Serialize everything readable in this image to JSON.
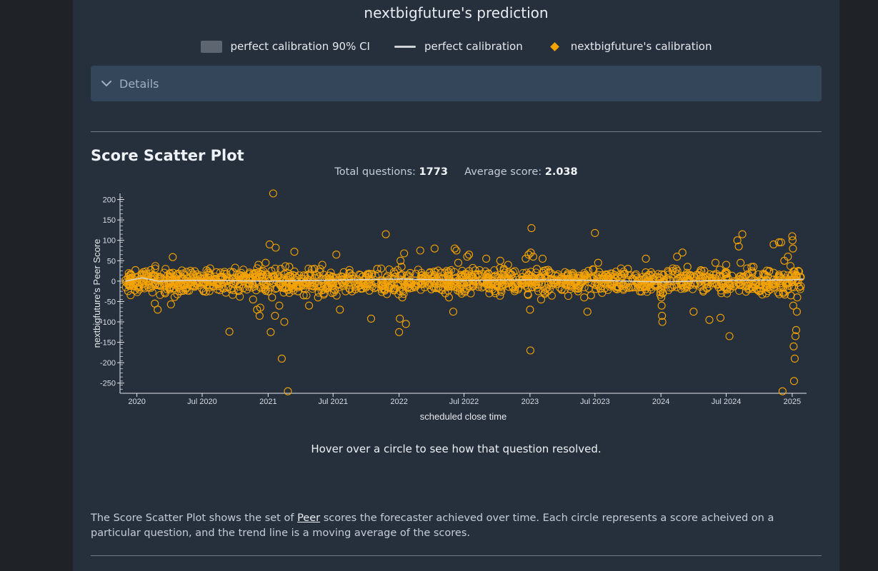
{
  "header": {
    "title": "nextbigfuture's prediction"
  },
  "legend": {
    "ci": "perfect calibration 90% CI",
    "line": "perfect calibration",
    "user": "nextbigfuture's calibration"
  },
  "details": {
    "label": "Details"
  },
  "section": {
    "title": "Score Scatter Plot",
    "total_label": "Total questions:",
    "total_value": "1773",
    "avg_label": "Average score:",
    "avg_value": "2.038"
  },
  "chart_data": {
    "type": "scatter",
    "ylabel": "nextbigfuture's Peer Score",
    "xlabel": "scheduled close time",
    "ylim": [
      -275,
      215
    ],
    "xlim": [
      "2019-11-15",
      "2025-02-10"
    ],
    "yticks": [
      "200",
      "150",
      "100",
      "50",
      "0",
      "-50",
      "-100",
      "-150",
      "-200",
      "-250"
    ],
    "xticks": [
      {
        "date": "2020-01-01",
        "label": "2020"
      },
      {
        "date": "2020-07-01",
        "label": "Jul 2020"
      },
      {
        "date": "2021-01-01",
        "label": "2021"
      },
      {
        "date": "2021-07-01",
        "label": "Jul 2021"
      },
      {
        "date": "2022-01-01",
        "label": "2022"
      },
      {
        "date": "2022-07-01",
        "label": "Jul 2022"
      },
      {
        "date": "2023-01-01",
        "label": "2023"
      },
      {
        "date": "2023-07-01",
        "label": "Jul 2023"
      },
      {
        "date": "2024-01-01",
        "label": "2024"
      },
      {
        "date": "2024-07-01",
        "label": "Jul 2024"
      },
      {
        "date": "2025-01-01",
        "label": "2025"
      }
    ],
    "marker_color": "#f5a300",
    "trend_color": "#d8dde3",
    "points": [
      [
        "2019-12-01",
        3
      ],
      [
        "2019-12-10",
        -1
      ],
      [
        "2019-12-20",
        8
      ],
      [
        "2019-12-28",
        27
      ],
      [
        "2020-01-10",
        5
      ],
      [
        "2020-02-01",
        -1
      ],
      [
        "2020-02-15",
        15
      ],
      [
        "2020-02-20",
        -55
      ],
      [
        "2020-02-28",
        -70
      ],
      [
        "2020-03-05",
        10
      ],
      [
        "2020-03-15",
        -5
      ],
      [
        "2020-03-20",
        -30
      ],
      [
        "2020-03-25",
        -20
      ],
      [
        "2020-04-01",
        18
      ],
      [
        "2020-04-05",
        -57
      ],
      [
        "2020-04-10",
        59
      ],
      [
        "2020-04-15",
        -39
      ],
      [
        "2020-04-20",
        -5
      ],
      [
        "2020-04-28",
        -25
      ],
      [
        "2020-05-05",
        5
      ],
      [
        "2020-05-10",
        -10
      ],
      [
        "2020-05-20",
        0
      ],
      [
        "2020-06-05",
        14
      ],
      [
        "2020-06-20",
        2
      ],
      [
        "2020-07-20",
        20
      ],
      [
        "2020-08-01",
        -2
      ],
      [
        "2020-08-20",
        10
      ],
      [
        "2020-09-01",
        18
      ],
      [
        "2020-09-15",
        -124
      ],
      [
        "2020-09-25",
        22
      ],
      [
        "2020-10-10",
        15
      ],
      [
        "2020-10-25",
        0
      ],
      [
        "2020-11-10",
        5
      ],
      [
        "2020-11-20",
        -45
      ],
      [
        "2020-11-25",
        20
      ],
      [
        "2020-12-01",
        -70
      ],
      [
        "2020-12-05",
        40
      ],
      [
        "2020-12-08",
        -85
      ],
      [
        "2020-12-10",
        -65
      ],
      [
        "2020-12-15",
        10
      ],
      [
        "2020-12-18",
        25
      ],
      [
        "2020-12-20",
        -10
      ],
      [
        "2020-12-25",
        45
      ],
      [
        "2021-01-01",
        -25
      ],
      [
        "2021-01-05",
        90
      ],
      [
        "2021-01-08",
        -125
      ],
      [
        "2021-01-10",
        25
      ],
      [
        "2021-01-12",
        -40
      ],
      [
        "2021-01-14",
        -5
      ],
      [
        "2021-01-15",
        215
      ],
      [
        "2021-01-18",
        10
      ],
      [
        "2021-01-20",
        -85
      ],
      [
        "2021-01-22",
        82
      ],
      [
        "2021-02-01",
        -60
      ],
      [
        "2021-02-05",
        30
      ],
      [
        "2021-02-08",
        -190
      ],
      [
        "2021-02-15",
        -100
      ],
      [
        "2021-02-20",
        -15
      ],
      [
        "2021-02-25",
        -270
      ],
      [
        "2021-03-01",
        35
      ],
      [
        "2021-03-10",
        15
      ],
      [
        "2021-03-15",
        72
      ],
      [
        "2021-03-25",
        -25
      ],
      [
        "2021-04-10",
        -35
      ],
      [
        "2021-04-20",
        5
      ],
      [
        "2021-04-25",
        -60
      ],
      [
        "2021-05-10",
        30
      ],
      [
        "2021-05-20",
        -40
      ],
      [
        "2021-06-01",
        40
      ],
      [
        "2021-06-15",
        -15
      ],
      [
        "2021-06-25",
        -5
      ],
      [
        "2021-07-01",
        10
      ],
      [
        "2021-07-10",
        65
      ],
      [
        "2021-07-20",
        -70
      ],
      [
        "2021-08-01",
        5
      ],
      [
        "2021-08-15",
        20
      ],
      [
        "2021-09-01",
        -20
      ],
      [
        "2021-09-15",
        15
      ],
      [
        "2021-10-01",
        8
      ],
      [
        "2021-10-15",
        -92
      ],
      [
        "2021-11-01",
        30
      ],
      [
        "2021-11-15",
        -10
      ],
      [
        "2021-11-25",
        115
      ],
      [
        "2021-12-10",
        -5
      ],
      [
        "2021-12-20",
        10
      ],
      [
        "2022-01-01",
        -125
      ],
      [
        "2022-01-03",
        -92
      ],
      [
        "2022-01-05",
        50
      ],
      [
        "2022-01-08",
        35
      ],
      [
        "2022-01-10",
        -40
      ],
      [
        "2022-01-12",
        0
      ],
      [
        "2022-01-15",
        68
      ],
      [
        "2022-01-20",
        -105
      ],
      [
        "2022-02-01",
        20
      ],
      [
        "2022-02-15",
        -15
      ],
      [
        "2022-03-01",
        75
      ],
      [
        "2022-03-15",
        10
      ],
      [
        "2022-04-01",
        -20
      ],
      [
        "2022-04-10",
        80
      ],
      [
        "2022-05-01",
        5
      ],
      [
        "2022-05-10",
        -30
      ],
      [
        "2022-05-20",
        -40
      ],
      [
        "2022-06-01",
        -75
      ],
      [
        "2022-06-05",
        80
      ],
      [
        "2022-06-10",
        75
      ],
      [
        "2022-06-15",
        45
      ],
      [
        "2022-07-01",
        10
      ],
      [
        "2022-07-10",
        60
      ],
      [
        "2022-07-15",
        65
      ],
      [
        "2022-08-01",
        0
      ],
      [
        "2022-09-01",
        55
      ],
      [
        "2022-10-01",
        -10
      ],
      [
        "2022-10-10",
        50
      ],
      [
        "2022-10-20",
        30
      ],
      [
        "2022-11-01",
        40
      ],
      [
        "2022-11-20",
        -20
      ],
      [
        "2022-12-10",
        10
      ],
      [
        "2022-12-20",
        55
      ],
      [
        "2022-12-28",
        65
      ],
      [
        "2023-01-01",
        -70
      ],
      [
        "2023-01-02",
        -170
      ],
      [
        "2023-01-03",
        70
      ],
      [
        "2023-01-05",
        130
      ],
      [
        "2023-01-10",
        60
      ],
      [
        "2023-01-20",
        30
      ],
      [
        "2023-02-01",
        -45
      ],
      [
        "2023-02-05",
        55
      ],
      [
        "2023-03-01",
        -5
      ],
      [
        "2023-04-01",
        10
      ],
      [
        "2023-05-01",
        20
      ],
      [
        "2023-05-15",
        -25
      ],
      [
        "2023-06-01",
        -40
      ],
      [
        "2023-06-10",
        -75
      ],
      [
        "2023-06-20",
        -35
      ],
      [
        "2023-07-01",
        118
      ],
      [
        "2023-07-10",
        45
      ],
      [
        "2023-08-01",
        15
      ],
      [
        "2023-09-01",
        -20
      ],
      [
        "2023-10-01",
        30
      ],
      [
        "2023-11-01",
        5
      ],
      [
        "2023-11-20",
        55
      ],
      [
        "2023-12-01",
        15
      ],
      [
        "2024-01-01",
        -20
      ],
      [
        "2024-01-02",
        -40
      ],
      [
        "2024-01-03",
        -60
      ],
      [
        "2024-01-04",
        -85
      ],
      [
        "2024-01-05",
        -100
      ],
      [
        "2024-01-06",
        -30
      ],
      [
        "2024-01-08",
        15
      ],
      [
        "2024-02-01",
        -15
      ],
      [
        "2024-02-15",
        60
      ],
      [
        "2024-03-01",
        70
      ],
      [
        "2024-03-15",
        35
      ],
      [
        "2024-04-01",
        -75
      ],
      [
        "2024-04-15",
        15
      ],
      [
        "2024-05-01",
        25
      ],
      [
        "2024-05-15",
        -95
      ],
      [
        "2024-06-01",
        45
      ],
      [
        "2024-06-15",
        -90
      ],
      [
        "2024-07-01",
        40
      ],
      [
        "2024-07-10",
        -135
      ],
      [
        "2024-07-20",
        -5
      ],
      [
        "2024-08-01",
        100
      ],
      [
        "2024-08-05",
        85
      ],
      [
        "2024-08-10",
        45
      ],
      [
        "2024-08-15",
        115
      ],
      [
        "2024-09-01",
        -20
      ],
      [
        "2024-09-15",
        35
      ],
      [
        "2024-10-01",
        -25
      ],
      [
        "2024-10-15",
        15
      ],
      [
        "2024-11-01",
        -20
      ],
      [
        "2024-11-10",
        90
      ],
      [
        "2024-11-25",
        95
      ],
      [
        "2024-12-01",
        95
      ],
      [
        "2024-12-05",
        -270
      ],
      [
        "2024-12-10",
        50
      ],
      [
        "2024-12-20",
        60
      ],
      [
        "2024-12-28",
        -35
      ],
      [
        "2025-01-01",
        110
      ],
      [
        "2025-01-02",
        100
      ],
      [
        "2025-01-03",
        80
      ],
      [
        "2025-01-04",
        -60
      ],
      [
        "2025-01-05",
        -160
      ],
      [
        "2025-01-06",
        -245
      ],
      [
        "2025-01-08",
        -190
      ],
      [
        "2025-01-10",
        -135
      ],
      [
        "2025-01-12",
        -120
      ],
      [
        "2025-01-14",
        -75
      ],
      [
        "2025-01-15",
        -40
      ],
      [
        "2025-01-18",
        25
      ],
      [
        "2025-01-20",
        -15
      ],
      [
        "2025-01-25",
        10
      ]
    ],
    "trend": [
      [
        "2019-12-01",
        0
      ],
      [
        "2020-01-15",
        8
      ],
      [
        "2020-03-01",
        0
      ],
      [
        "2020-06-01",
        2
      ],
      [
        "2021-01-01",
        0
      ],
      [
        "2021-06-01",
        2
      ],
      [
        "2022-01-01",
        5
      ],
      [
        "2022-07-01",
        2
      ],
      [
        "2023-01-01",
        3
      ],
      [
        "2023-07-01",
        2
      ],
      [
        "2024-01-01",
        -2
      ],
      [
        "2024-07-01",
        2
      ],
      [
        "2025-01-01",
        3
      ],
      [
        "2025-02-01",
        5
      ]
    ]
  },
  "hover_note": "Hover over a circle to see how that question resolved.",
  "description": {
    "before": "The Score Scatter Plot shows the set of ",
    "link": "Peer",
    "after": " scores the forecaster achieved over time. Each circle represents a score acheived on a particular question, and the trend line is a moving average of the scores."
  }
}
